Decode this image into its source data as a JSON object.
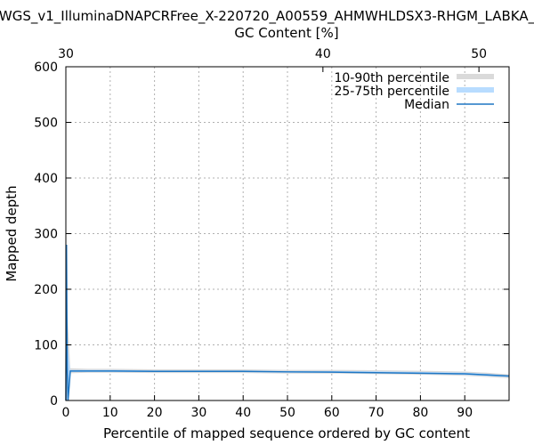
{
  "chart_data": {
    "type": "line",
    "title": "WGS_v1_IlluminaDNAPCRFree_X-220720_A00559_AHMWHLDSX3-RHGM_LABKA_",
    "xlabel": "Percentile of mapped sequence ordered by GC content",
    "ylabel": "Mapped depth",
    "x2label": "GC Content [%]",
    "xlim": [
      0,
      100
    ],
    "ylim": [
      0,
      600
    ],
    "x_ticks": [
      0,
      10,
      20,
      30,
      40,
      50,
      60,
      70,
      80,
      90
    ],
    "y_ticks": [
      0,
      100,
      200,
      300,
      400,
      500,
      600
    ],
    "x2_ticks": [
      {
        "label": "30",
        "at": 0
      },
      {
        "label": "40",
        "at": 58
      },
      {
        "label": "50",
        "at": 93.2
      }
    ],
    "grid": true,
    "legend_position": "top-right",
    "colors": {
      "p10_90": "#dadada",
      "p25_75": "#b8dcff",
      "median": "#1f77c4"
    },
    "series": [
      {
        "name": "10-90th percentile",
        "kind": "band",
        "x": [
          0,
          0.4,
          1,
          5,
          10,
          20,
          30,
          40,
          50,
          60,
          70,
          80,
          90,
          95,
          100
        ],
        "low": [
          0,
          0,
          49,
          50,
          50,
          49.5,
          49.5,
          49.5,
          48.5,
          48.5,
          47.5,
          46.5,
          44.5,
          42.5,
          40
        ],
        "high": [
          240,
          150,
          58,
          57,
          57,
          56,
          56,
          56,
          55,
          55,
          54.5,
          53.5,
          52,
          50,
          47
        ]
      },
      {
        "name": "25-75th percentile",
        "kind": "band",
        "x": [
          0,
          0.4,
          1,
          5,
          10,
          20,
          30,
          40,
          50,
          60,
          70,
          80,
          90,
          95,
          100
        ],
        "low": [
          0,
          0,
          51,
          51.5,
          51.5,
          51,
          51,
          51,
          50,
          50,
          49,
          48,
          46,
          44,
          42
        ],
        "high": [
          150,
          100,
          55,
          55,
          55,
          54,
          54,
          54,
          53,
          53,
          52.5,
          51.5,
          50,
          48,
          45
        ]
      },
      {
        "name": "Median",
        "kind": "line",
        "x": [
          0,
          0.15,
          0.3,
          0.5,
          1,
          5,
          10,
          20,
          30,
          40,
          50,
          60,
          70,
          80,
          90,
          95,
          100
        ],
        "y": [
          0,
          280,
          60,
          0,
          53,
          53,
          53,
          52.5,
          52.5,
          52.5,
          51.5,
          51,
          50,
          49,
          48,
          46,
          44
        ]
      }
    ]
  }
}
